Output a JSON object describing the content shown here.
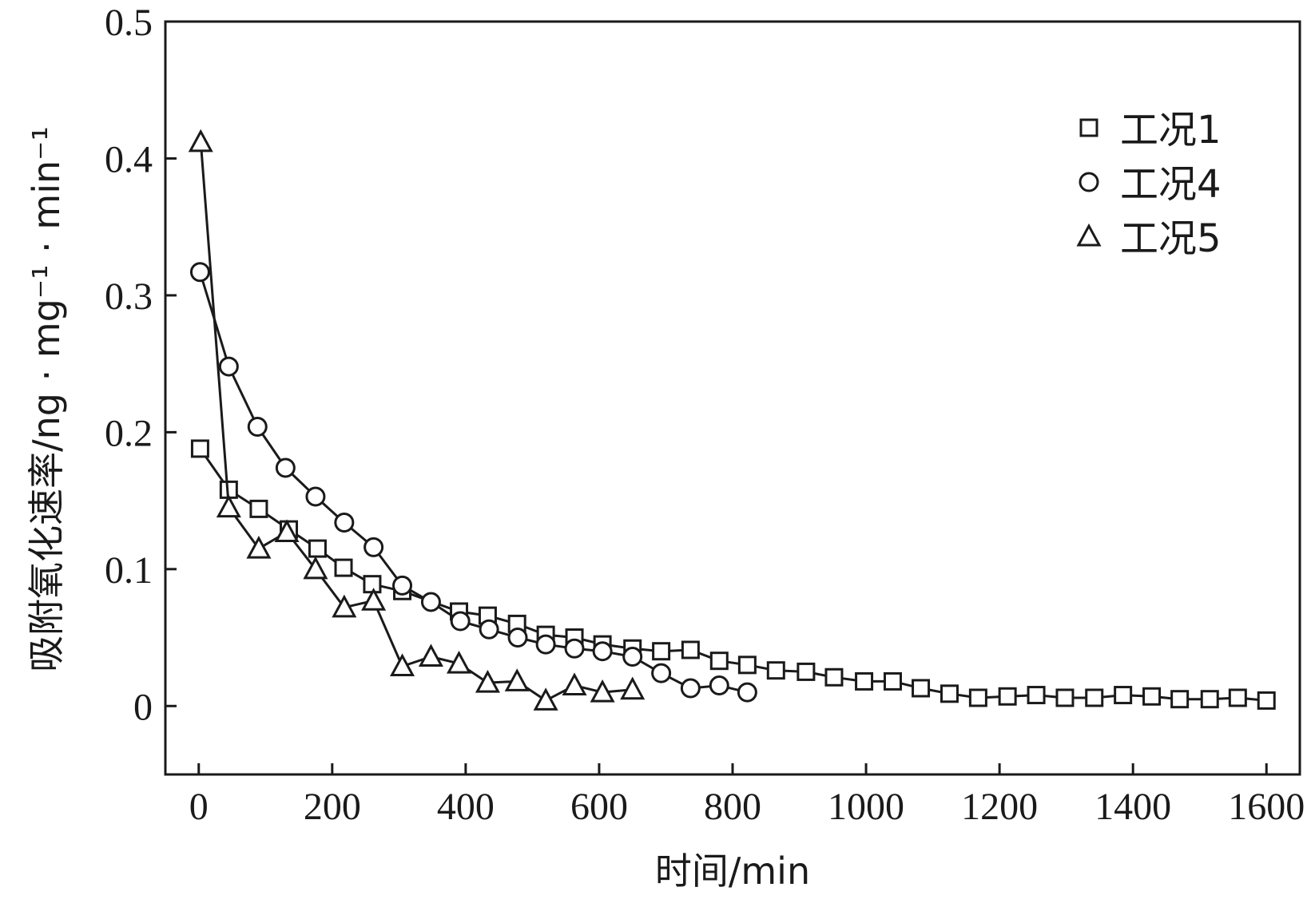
{
  "chart_data": {
    "type": "line",
    "xlabel": "时间/min",
    "ylabel": "吸附氧化速率/ng · mg⁻¹ · min⁻¹",
    "xlim": [
      -50,
      1650
    ],
    "ylim": [
      -0.05,
      0.5
    ],
    "xticks": [
      0,
      200,
      400,
      600,
      800,
      1000,
      1200,
      1400,
      1600
    ],
    "yticks": [
      0,
      0.1,
      0.2,
      0.3,
      0.4,
      0.5
    ],
    "ytick_labels": [
      "0",
      "0.1",
      "0.2",
      "0.3",
      "0.4",
      "0.5"
    ],
    "legend_position": "top-right",
    "series": [
      {
        "name": "工况1",
        "marker": "square",
        "x": [
          2,
          45,
          90,
          135,
          178,
          217,
          260,
          305,
          390,
          433,
          477,
          520,
          563,
          605,
          650,
          693,
          737,
          780,
          822,
          865,
          910,
          952,
          997,
          1040,
          1082,
          1125,
          1168,
          1212,
          1255,
          1298,
          1342,
          1385,
          1428,
          1470,
          1515,
          1557,
          1600
        ],
        "y": [
          0.188,
          0.158,
          0.144,
          0.129,
          0.115,
          0.101,
          0.089,
          0.084,
          0.069,
          0.066,
          0.06,
          0.052,
          0.05,
          0.045,
          0.042,
          0.04,
          0.041,
          0.033,
          0.03,
          0.026,
          0.025,
          0.021,
          0.018,
          0.018,
          0.013,
          0.009,
          0.006,
          0.007,
          0.008,
          0.006,
          0.006,
          0.008,
          0.007,
          0.005,
          0.005,
          0.006,
          0.004
        ]
      },
      {
        "name": "工况4",
        "marker": "circle",
        "x": [
          2,
          45,
          88,
          130,
          175,
          218,
          262,
          305,
          348,
          392,
          435,
          478,
          520,
          563,
          605,
          650,
          693,
          737,
          780,
          822
        ],
        "y": [
          0.317,
          0.248,
          0.204,
          0.174,
          0.153,
          0.134,
          0.116,
          0.088,
          0.076,
          0.062,
          0.056,
          0.05,
          0.045,
          0.042,
          0.04,
          0.036,
          0.024,
          0.013,
          0.015,
          0.01
        ]
      },
      {
        "name": "工况5",
        "marker": "triangle",
        "x": [
          3,
          45,
          90,
          132,
          175,
          218,
          262,
          305,
          348,
          390,
          433,
          477,
          520,
          563,
          605,
          650
        ],
        "y": [
          0.412,
          0.145,
          0.115,
          0.127,
          0.1,
          0.072,
          0.077,
          0.029,
          0.036,
          0.031,
          0.017,
          0.018,
          0.004,
          0.015,
          0.01,
          0.012
        ]
      }
    ]
  }
}
